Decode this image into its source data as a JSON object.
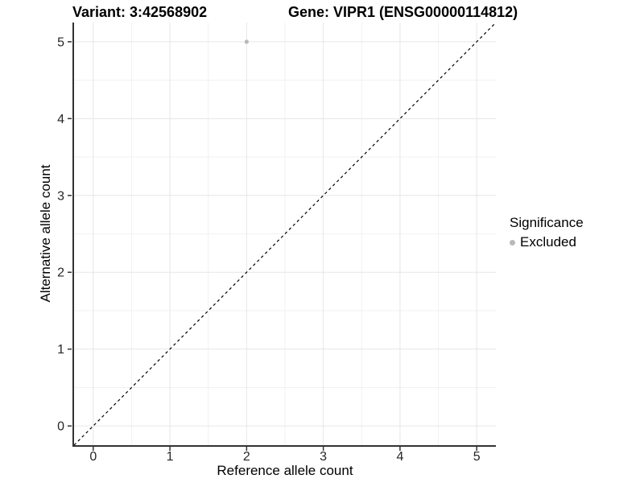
{
  "figure": {
    "title_variant": "Variant: 3:42568902",
    "title_gene": "Gene: VIPR1 (ENSG00000114812)"
  },
  "chart_data": {
    "type": "scatter",
    "title": "Variant: 3:42568902    Gene: VIPR1 (ENSG00000114812)",
    "xlabel": "Reference allele count",
    "ylabel": "Alternative allele count",
    "xlim": [
      -0.25,
      5.25
    ],
    "ylim": [
      -0.25,
      5.25
    ],
    "x_ticks": [
      0,
      1,
      2,
      3,
      4,
      5
    ],
    "y_ticks": [
      0,
      1,
      2,
      3,
      4,
      5
    ],
    "grid": {
      "major": true,
      "minor": true
    },
    "points": [
      {
        "x": 2,
        "y": 5,
        "series": "Excluded"
      }
    ],
    "reference_line": {
      "slope": 1,
      "intercept": 0,
      "style": "dashed"
    },
    "legend": {
      "title": "Significance",
      "position": "right",
      "items": [
        {
          "label": "Excluded",
          "color": "#B9B9B9"
        }
      ]
    },
    "style": {
      "point_color": "#B9B9B9",
      "major_grid_color": "#E6E6E6",
      "minor_grid_color": "#F1F1F1",
      "axis_color": "#333333",
      "tick_label_color": "#262626",
      "reference_line_color": "#000000",
      "background": "#FFFFFF"
    }
  }
}
